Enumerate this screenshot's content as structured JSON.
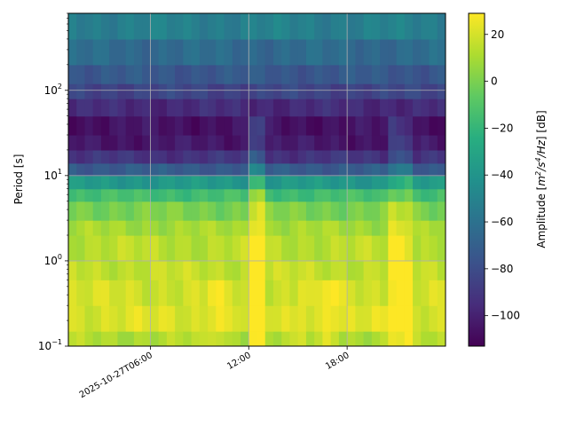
{
  "chart_data": {
    "type": "heatmap",
    "title": "",
    "xlabel": "",
    "ylabel": "Period [s]",
    "y_scale": "log",
    "ylim": [
      0.1,
      800
    ],
    "x_start": "2025-10-27T00:00",
    "x_end": "2025-10-27T23:00",
    "xlim_hours": [
      1,
      24
    ],
    "x_ticks": [
      {
        "hour": 6,
        "label": "2025-10-27T06:00"
      },
      {
        "hour": 12,
        "label": "12:00"
      },
      {
        "hour": 18,
        "label": "18:00"
      }
    ],
    "y_ticks": [
      {
        "value": 0.1,
        "base": "10",
        "exp": "−1"
      },
      {
        "value": 1,
        "base": "10",
        "exp": "0"
      },
      {
        "value": 10,
        "base": "10",
        "exp": "1"
      },
      {
        "value": 100,
        "base": "10",
        "exp": "2"
      }
    ],
    "grid": true,
    "colormap": "viridis",
    "colorbar": {
      "label_main": "Amplitude [",
      "label_math_m": "m",
      "label_sup1": "2",
      "label_math_s": "/s",
      "label_sup2": "4",
      "label_math_hz": "/Hz",
      "label_end": "] [dB]",
      "range": [
        -113,
        29
      ],
      "ticks": [
        "20",
        "0",
        "−20",
        "−40",
        "−60",
        "−80",
        "−100"
      ],
      "tick_values": [
        20,
        0,
        -20,
        -40,
        -60,
        -80,
        -100
      ]
    },
    "period_bands_s": [
      0.1,
      0.15,
      0.3,
      0.6,
      1,
      2,
      3,
      5,
      7,
      10,
      14,
      20,
      30,
      50,
      80,
      120,
      200,
      400,
      800
    ],
    "base_profile_db": [
      12,
      21,
      19,
      16,
      14,
      9,
      0,
      -15,
      -38,
      -72,
      -92,
      -104,
      -106,
      -96,
      -84,
      -74,
      -64,
      -52
    ],
    "events": [
      {
        "hour_start": 9.5,
        "hour_end": 10.5,
        "max_period_s": 0.6,
        "boost_db": 8
      },
      {
        "hour_start": 12.0,
        "hour_end": 13.0,
        "max_period_s": 50,
        "boost_db": 20
      },
      {
        "hour_start": 14.8,
        "hour_end": 15.6,
        "max_period_s": 0.6,
        "boost_db": 8
      },
      {
        "hour_start": 16.6,
        "hour_end": 17.6,
        "max_period_s": 0.6,
        "boost_db": 9
      },
      {
        "hour_start": 20.5,
        "hour_end": 21.8,
        "max_period_s": 50,
        "boost_db": 14
      }
    ]
  }
}
